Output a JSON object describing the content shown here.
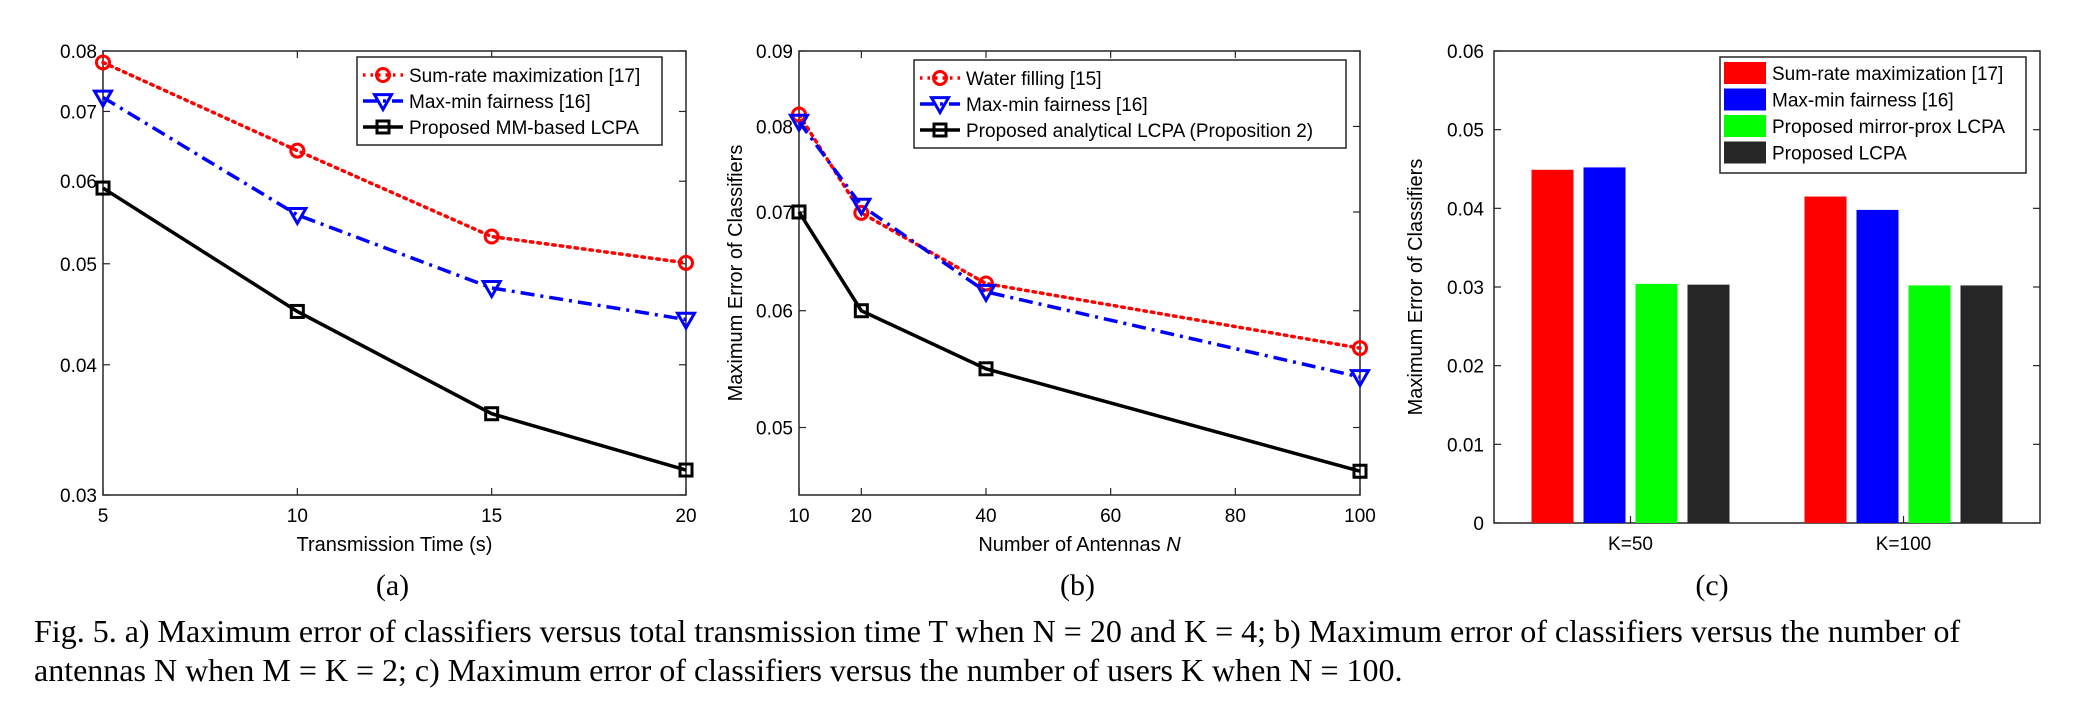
{
  "chart_data": [
    {
      "type": "line",
      "panel_label": "(a)",
      "xlabel": "Transmission Time (s)",
      "ylabel": "",
      "yscale": "log",
      "xlim": [
        5,
        20
      ],
      "ylim": [
        0.03,
        0.08
      ],
      "xticks": [
        5,
        10,
        15,
        20
      ],
      "xtick_labels": [
        "5",
        "10",
        "15",
        "20"
      ],
      "yticks": [
        0.03,
        0.04,
        0.05,
        0.06,
        0.07,
        0.08
      ],
      "ytick_labels": [
        "0.03",
        "0.04",
        "0.05",
        "0.06",
        "0.07",
        "0.08"
      ],
      "grid": false,
      "legend_position": "top-right",
      "series": [
        {
          "name": "Sum-rate maximization [17]",
          "color": "#ff0000",
          "marker": "circle",
          "dash": "dotted",
          "x": [
            5,
            10,
            15,
            20
          ],
          "y": [
            0.078,
            0.0642,
            0.0531,
            0.0501
          ]
        },
        {
          "name": "Max-min fairness [16]",
          "color": "#0000ff",
          "marker": "triangle-down",
          "dash": "dashdot",
          "x": [
            5,
            10,
            15,
            20
          ],
          "y": [
            0.0722,
            0.0557,
            0.0474,
            0.0442
          ]
        },
        {
          "name": "Proposed MM-based LCPA",
          "color": "#000000",
          "marker": "square",
          "dash": "solid",
          "x": [
            5,
            10,
            15,
            20
          ],
          "y": [
            0.0591,
            0.045,
            0.0359,
            0.0317
          ]
        }
      ]
    },
    {
      "type": "line",
      "panel_label": "(b)",
      "xlabel": "Number of Antennas N",
      "ylabel": "Maximum Error of Classifiers",
      "yscale": "log",
      "xlim": [
        10,
        100
      ],
      "ylim": [
        0.045,
        0.09
      ],
      "xticks": [
        10,
        20,
        40,
        60,
        80,
        100
      ],
      "xtick_labels": [
        "10",
        "20",
        "40",
        "60",
        "80",
        "100"
      ],
      "yticks": [
        0.05,
        0.06,
        0.07,
        0.08,
        0.09
      ],
      "ytick_labels": [
        "0.05",
        "0.06",
        "0.07",
        "0.08",
        "0.09"
      ],
      "grid": false,
      "legend_position": "top-right",
      "series": [
        {
          "name": "Water filling [15]",
          "color": "#ff0000",
          "marker": "circle",
          "dash": "dotted",
          "x": [
            10,
            20,
            40,
            100
          ],
          "y": [
            0.0815,
            0.0699,
            0.0626,
            0.0566
          ]
        },
        {
          "name": "Max-min fairness [16]",
          "color": "#0000ff",
          "marker": "triangle-down",
          "dash": "dashdot",
          "x": [
            10,
            20,
            40,
            100
          ],
          "y": [
            0.0806,
            0.0707,
            0.0618,
            0.0541
          ]
        },
        {
          "name": "Proposed analytical LCPA (Proposition 2)",
          "color": "#000000",
          "marker": "square",
          "dash": "solid",
          "x": [
            10,
            20,
            40,
            100
          ],
          "y": [
            0.07,
            0.06,
            0.0548,
            0.0467
          ]
        }
      ]
    },
    {
      "type": "bar",
      "panel_label": "(c)",
      "xlabel": "",
      "ylabel": "Maximum Error of Classifiers",
      "ylim": [
        0,
        0.06
      ],
      "yticks": [
        0,
        0.01,
        0.02,
        0.03,
        0.04,
        0.05,
        0.06
      ],
      "ytick_labels": [
        "0",
        "0.01",
        "0.02",
        "0.03",
        "0.04",
        "0.05",
        "0.06"
      ],
      "categories": [
        "K=50",
        "K=100"
      ],
      "grid": false,
      "legend_position": "top-right",
      "series": [
        {
          "name": "Sum-rate maximization [17]",
          "color": "#ff0000",
          "values": [
            0.0449,
            0.0415
          ]
        },
        {
          "name": "Max-min fairness [16]",
          "color": "#0000ff",
          "values": [
            0.0452,
            0.0398
          ]
        },
        {
          "name": "Proposed mirror-prox LCPA",
          "color": "#00ff00",
          "values": [
            0.0304,
            0.0302
          ]
        },
        {
          "name": "Proposed LCPA",
          "color": "#262626",
          "values": [
            0.0303,
            0.0302
          ]
        }
      ]
    }
  ],
  "caption": {
    "line1": "Fig. 5.   a) Maximum error of classifiers versus total transmission time T when N = 20 and K = 4; b) Maximum error of classifiers versus the number of",
    "line2": "antennas N when M = K = 2; c) Maximum error of classifiers versus the number of users K when N = 100."
  }
}
